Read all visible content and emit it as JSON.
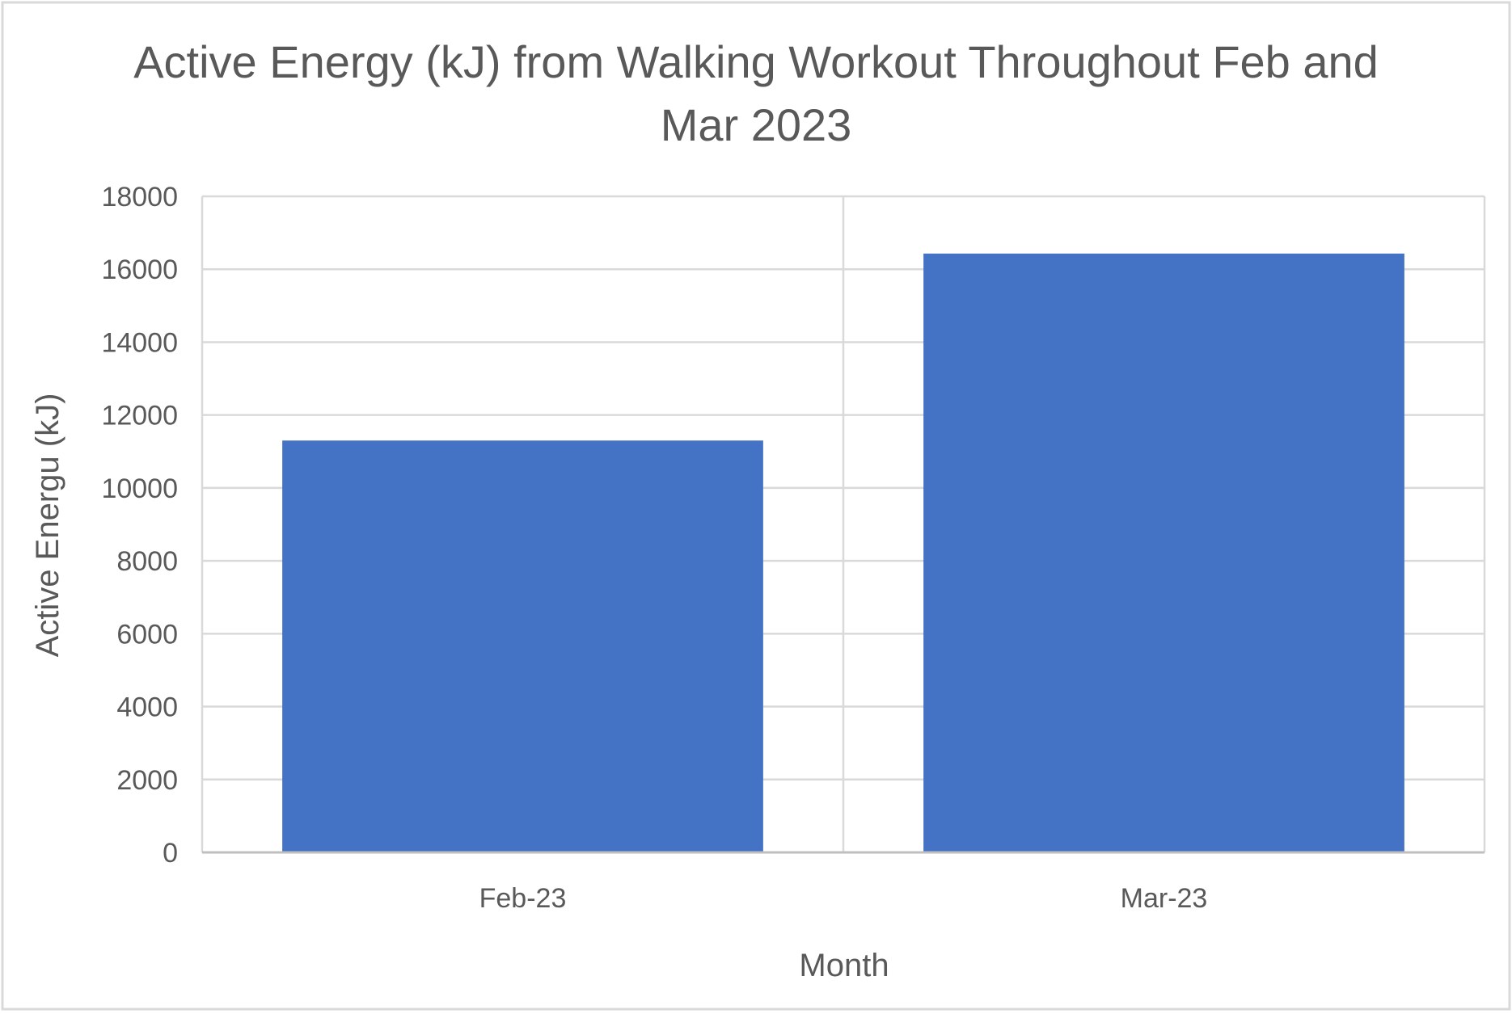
{
  "chart_data": {
    "type": "bar",
    "title_lines": [
      "Active Energy (kJ) from Walking Workout Throughout Feb and",
      "Mar 2023"
    ],
    "categories": [
      "Feb-23",
      "Mar-23"
    ],
    "values": [
      11300,
      16430
    ],
    "xlabel": "Month",
    "ylabel": "Active Energu (kJ)",
    "ylim": [
      0,
      18000
    ],
    "yticks": [
      "0",
      "2000",
      "4000",
      "6000",
      "8000",
      "10000",
      "12000",
      "14000",
      "16000",
      "18000"
    ],
    "grid": true,
    "legend": "none",
    "bar_color": "#4472C4"
  }
}
